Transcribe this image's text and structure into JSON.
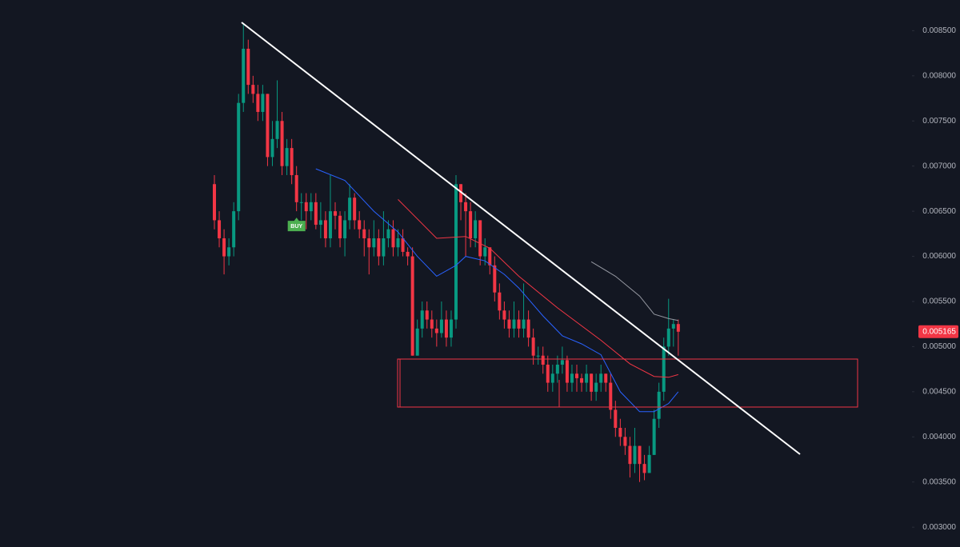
{
  "chart_data": {
    "type": "candlestick",
    "up_color": "#089981",
    "down_color": "#f23645",
    "open": [
      0.0068,
      0.0064,
      0.0062,
      0.006,
      0.0061,
      0.0065,
      0.0077,
      0.0083,
      0.0079,
      0.0078,
      0.0076,
      0.0078,
      0.0071,
      0.0073,
      0.0075,
      0.007,
      0.0072,
      0.0069,
      0.0066,
      0.0066,
      0.0065,
      0.0066,
      0.00635,
      0.0064,
      0.0062,
      0.0065,
      0.00645,
      0.0062,
      0.0064,
      0.00665,
      0.0064,
      0.0063,
      0.0062,
      0.0061,
      0.0062,
      0.006,
      0.0062,
      0.0063,
      0.0061,
      0.0062,
      0.00605,
      0.006,
      0.0049,
      0.0052,
      0.0054,
      0.0053,
      0.0052,
      0.00515,
      0.0053,
      0.0051,
      0.0053,
      0.0068,
      0.0066,
      0.0065,
      0.0062,
      0.0064,
      0.006,
      0.0061,
      0.0059,
      0.0056,
      0.0054,
      0.0053,
      0.0052,
      0.0053,
      0.0052,
      0.0053,
      0.0051,
      0.0049,
      0.0049,
      0.0048,
      0.0046,
      0.0047,
      0.0048,
      0.00485,
      0.0046,
      0.0047,
      0.00465,
      0.0046,
      0.0047,
      0.0045,
      0.0046,
      0.0047,
      0.0046,
      0.0043,
      0.0041,
      0.004,
      0.0039,
      0.0037,
      0.0039,
      0.0037,
      0.0036,
      0.0038,
      0.0042,
      0.0045,
      0.005,
      0.0052,
      0.00525
    ],
    "high": [
      0.0069,
      0.0065,
      0.0063,
      0.0062,
      0.0066,
      0.0078,
      0.00857,
      0.0084,
      0.008,
      0.0079,
      0.0079,
      0.0078,
      0.0075,
      0.00795,
      0.0076,
      0.0073,
      0.0073,
      0.007,
      0.0067,
      0.0067,
      0.0067,
      0.0067,
      0.0066,
      0.0065,
      0.0069,
      0.0066,
      0.0065,
      0.0065,
      0.0068,
      0.0067,
      0.0065,
      0.0064,
      0.0063,
      0.0064,
      0.0063,
      0.0065,
      0.0064,
      0.0064,
      0.0063,
      0.0063,
      0.0061,
      0.0061,
      0.0053,
      0.0055,
      0.0055,
      0.0054,
      0.0053,
      0.0055,
      0.0054,
      0.0054,
      0.0069,
      0.0068,
      0.0067,
      0.0066,
      0.0065,
      0.0064,
      0.0062,
      0.0061,
      0.006,
      0.0057,
      0.0055,
      0.0054,
      0.0055,
      0.0054,
      0.0057,
      0.0054,
      0.0052,
      0.005,
      0.005,
      0.0049,
      0.0048,
      0.0049,
      0.005,
      0.0049,
      0.0048,
      0.0048,
      0.0047,
      0.0048,
      0.0047,
      0.0047,
      0.0048,
      0.0047,
      0.0047,
      0.0044,
      0.0042,
      0.0041,
      0.004,
      0.0041,
      0.0039,
      0.0038,
      0.0039,
      0.0043,
      0.0046,
      0.0051,
      0.00553,
      0.0053,
      0.0053
    ],
    "low": [
      0.0063,
      0.0061,
      0.0058,
      0.0059,
      0.006,
      0.0064,
      0.0076,
      0.0078,
      0.0077,
      0.0075,
      0.0075,
      0.007,
      0.007,
      0.0072,
      0.0069,
      0.0069,
      0.0068,
      0.0065,
      0.0064,
      0.0063,
      0.0064,
      0.0063,
      0.0062,
      0.0061,
      0.0061,
      0.0063,
      0.0061,
      0.006,
      0.0063,
      0.0063,
      0.0062,
      0.006,
      0.0058,
      0.006,
      0.0059,
      0.0059,
      0.0061,
      0.006,
      0.006,
      0.006,
      0.0059,
      0.0049,
      0.0049,
      0.0051,
      0.0052,
      0.0051,
      0.005,
      0.0051,
      0.005,
      0.005,
      0.0052,
      0.0064,
      0.006,
      0.0061,
      0.0061,
      0.0059,
      0.0059,
      0.0058,
      0.0055,
      0.0053,
      0.0052,
      0.0051,
      0.0051,
      0.0051,
      0.0051,
      0.005,
      0.0048,
      0.0048,
      0.0047,
      0.0045,
      0.0045,
      0.0046,
      0.0047,
      0.0045,
      0.0045,
      0.0045,
      0.0045,
      0.0045,
      0.0044,
      0.0044,
      0.0045,
      0.0045,
      0.0042,
      0.004,
      0.0039,
      0.0038,
      0.00355,
      0.0036,
      0.0035,
      0.00352,
      0.0036,
      0.0038,
      0.0041,
      0.0044,
      0.0049,
      0.005,
      0.0049
    ],
    "close": [
      0.0064,
      0.0062,
      0.006,
      0.0061,
      0.0065,
      0.0077,
      0.0083,
      0.0079,
      0.0078,
      0.0076,
      0.0078,
      0.0071,
      0.0073,
      0.0075,
      0.007,
      0.0072,
      0.0069,
      0.0066,
      0.0066,
      0.0065,
      0.0066,
      0.00635,
      0.0064,
      0.0062,
      0.0065,
      0.00645,
      0.0062,
      0.0064,
      0.00665,
      0.0064,
      0.0063,
      0.0062,
      0.0061,
      0.0062,
      0.006,
      0.0062,
      0.0063,
      0.0061,
      0.0062,
      0.00605,
      0.006,
      0.0049,
      0.0052,
      0.0054,
      0.0053,
      0.0052,
      0.00515,
      0.0053,
      0.0051,
      0.0053,
      0.0068,
      0.0066,
      0.0065,
      0.0062,
      0.0064,
      0.006,
      0.0061,
      0.0059,
      0.0056,
      0.0054,
      0.0053,
      0.0052,
      0.0053,
      0.0052,
      0.0053,
      0.0051,
      0.0049,
      0.0049,
      0.0048,
      0.0046,
      0.0047,
      0.0048,
      0.00485,
      0.0046,
      0.0047,
      0.00465,
      0.0046,
      0.0047,
      0.0045,
      0.0046,
      0.0047,
      0.0046,
      0.0043,
      0.0041,
      0.004,
      0.0039,
      0.0037,
      0.0039,
      0.0037,
      0.0036,
      0.0038,
      0.0042,
      0.0045,
      0.005,
      0.0052,
      0.00525,
      0.005165
    ],
    "lines": [
      {
        "color": "#2962ff",
        "x": [
          21,
          27,
          33,
          38,
          42,
          46,
          50,
          52,
          56,
          60,
          63,
          68,
          72,
          76,
          80,
          84,
          88,
          91,
          94,
          96
        ],
        "values": [
          0.00697,
          0.00684,
          0.0065,
          0.00627,
          0.006,
          0.00578,
          0.0059,
          0.006,
          0.00595,
          0.0058,
          0.00565,
          0.00534,
          0.00512,
          0.00503,
          0.00491,
          0.0045,
          0.00428,
          0.00428,
          0.00437,
          0.0045
        ]
      },
      {
        "color": "#f23645",
        "x": [
          38,
          46,
          52,
          57,
          63,
          71,
          80,
          86,
          91,
          94,
          96
        ],
        "values": [
          0.00663,
          0.0062,
          0.00622,
          0.00609,
          0.00578,
          0.00543,
          0.00507,
          0.00481,
          0.00467,
          0.00466,
          0.00469
        ]
      },
      {
        "color": "#9598a1",
        "x": [
          78,
          83,
          88,
          91,
          94,
          96
        ],
        "values": [
          0.00594,
          0.00578,
          0.00556,
          0.00536,
          0.00531,
          0.00529
        ]
      }
    ],
    "buy_signal": {
      "label": "BUY",
      "index": 17
    },
    "last_price": {
      "value": 0.005165,
      "label": "0.005165"
    },
    "ylim": [
      0.00278,
      0.00884
    ],
    "yticks": [
      {
        "value": 0.0085,
        "label": "0.008500"
      },
      {
        "value": 0.008,
        "label": "0.008000"
      },
      {
        "value": 0.0075,
        "label": "0.007500"
      },
      {
        "value": 0.007,
        "label": "0.007000"
      },
      {
        "value": 0.0065,
        "label": "0.006500"
      },
      {
        "value": 0.006,
        "label": "0.006000"
      },
      {
        "value": 0.0055,
        "label": "0.005500"
      },
      {
        "value": 0.005,
        "label": "0.005000"
      },
      {
        "value": 0.0045,
        "label": "0.004500"
      },
      {
        "value": 0.004,
        "label": "0.004000"
      },
      {
        "value": 0.0035,
        "label": "0.003500"
      },
      {
        "value": 0.003,
        "label": "0.003000"
      }
    ]
  }
}
